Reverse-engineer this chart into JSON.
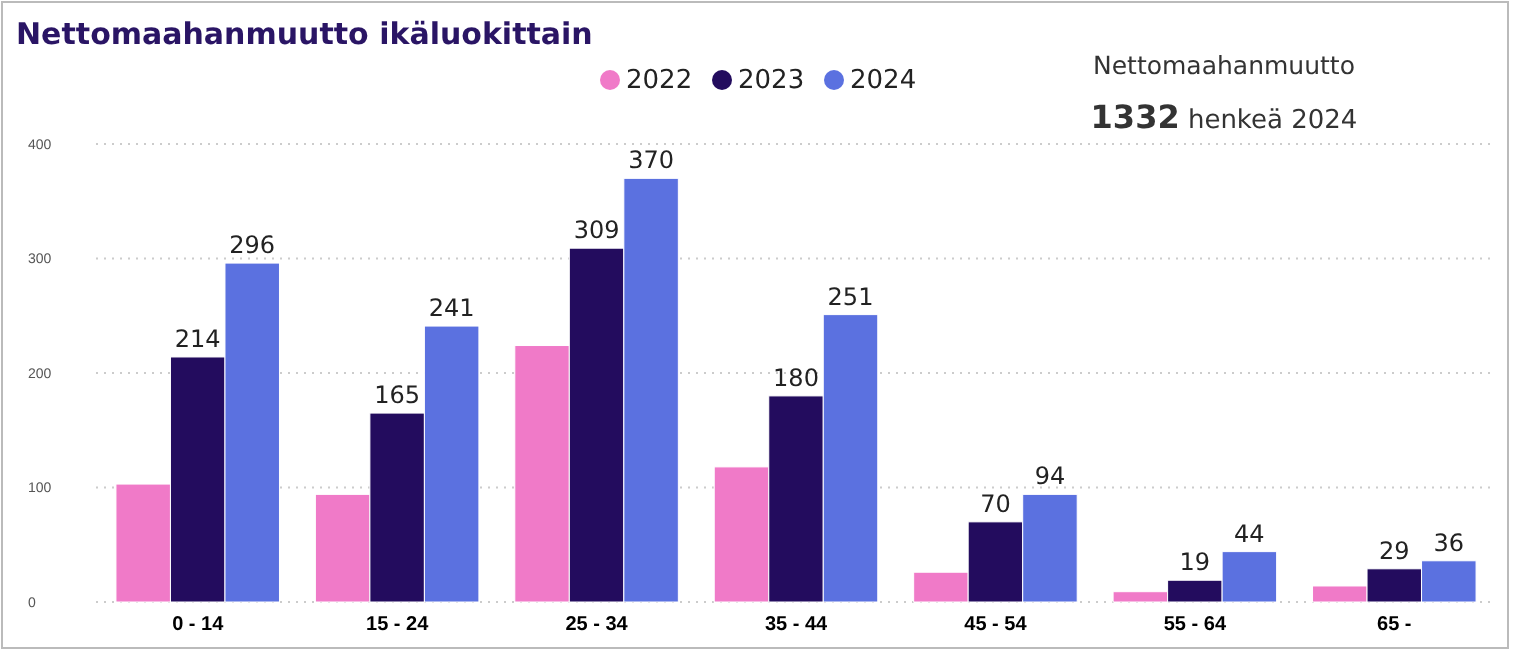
{
  "chart_data": {
    "type": "bar",
    "title": "Nettomaahanmuutto ikäluokittain",
    "annotations": [
      "Nettomaahanmuutto",
      "1332 henkeä 2024"
    ],
    "categories": [
      "0 - 14",
      "15 - 24",
      "25 - 34",
      "35 - 44",
      "45 - 54",
      "55 - 64",
      "65 -"
    ],
    "series": [
      {
        "name": "2022",
        "color": "#f07ac8",
        "values": [
          103,
          94,
          224,
          118,
          26,
          9,
          14
        ]
      },
      {
        "name": "2023",
        "color": "#230c5e",
        "values": [
          214,
          165,
          309,
          180,
          70,
          19,
          29
        ],
        "value_labels": [
          "214",
          "165",
          "309",
          "180",
          "70",
          "19",
          "29"
        ]
      },
      {
        "name": "2024",
        "color": "#5b71e0",
        "values": [
          296,
          241,
          370,
          251,
          94,
          44,
          36
        ],
        "value_labels": [
          "296",
          "241",
          "370",
          "251",
          "94",
          "44",
          "36"
        ]
      }
    ],
    "ylim": [
      0,
      400
    ],
    "yticks": [
      0,
      100,
      200,
      300,
      400
    ],
    "grid": "y",
    "legend": "top"
  }
}
